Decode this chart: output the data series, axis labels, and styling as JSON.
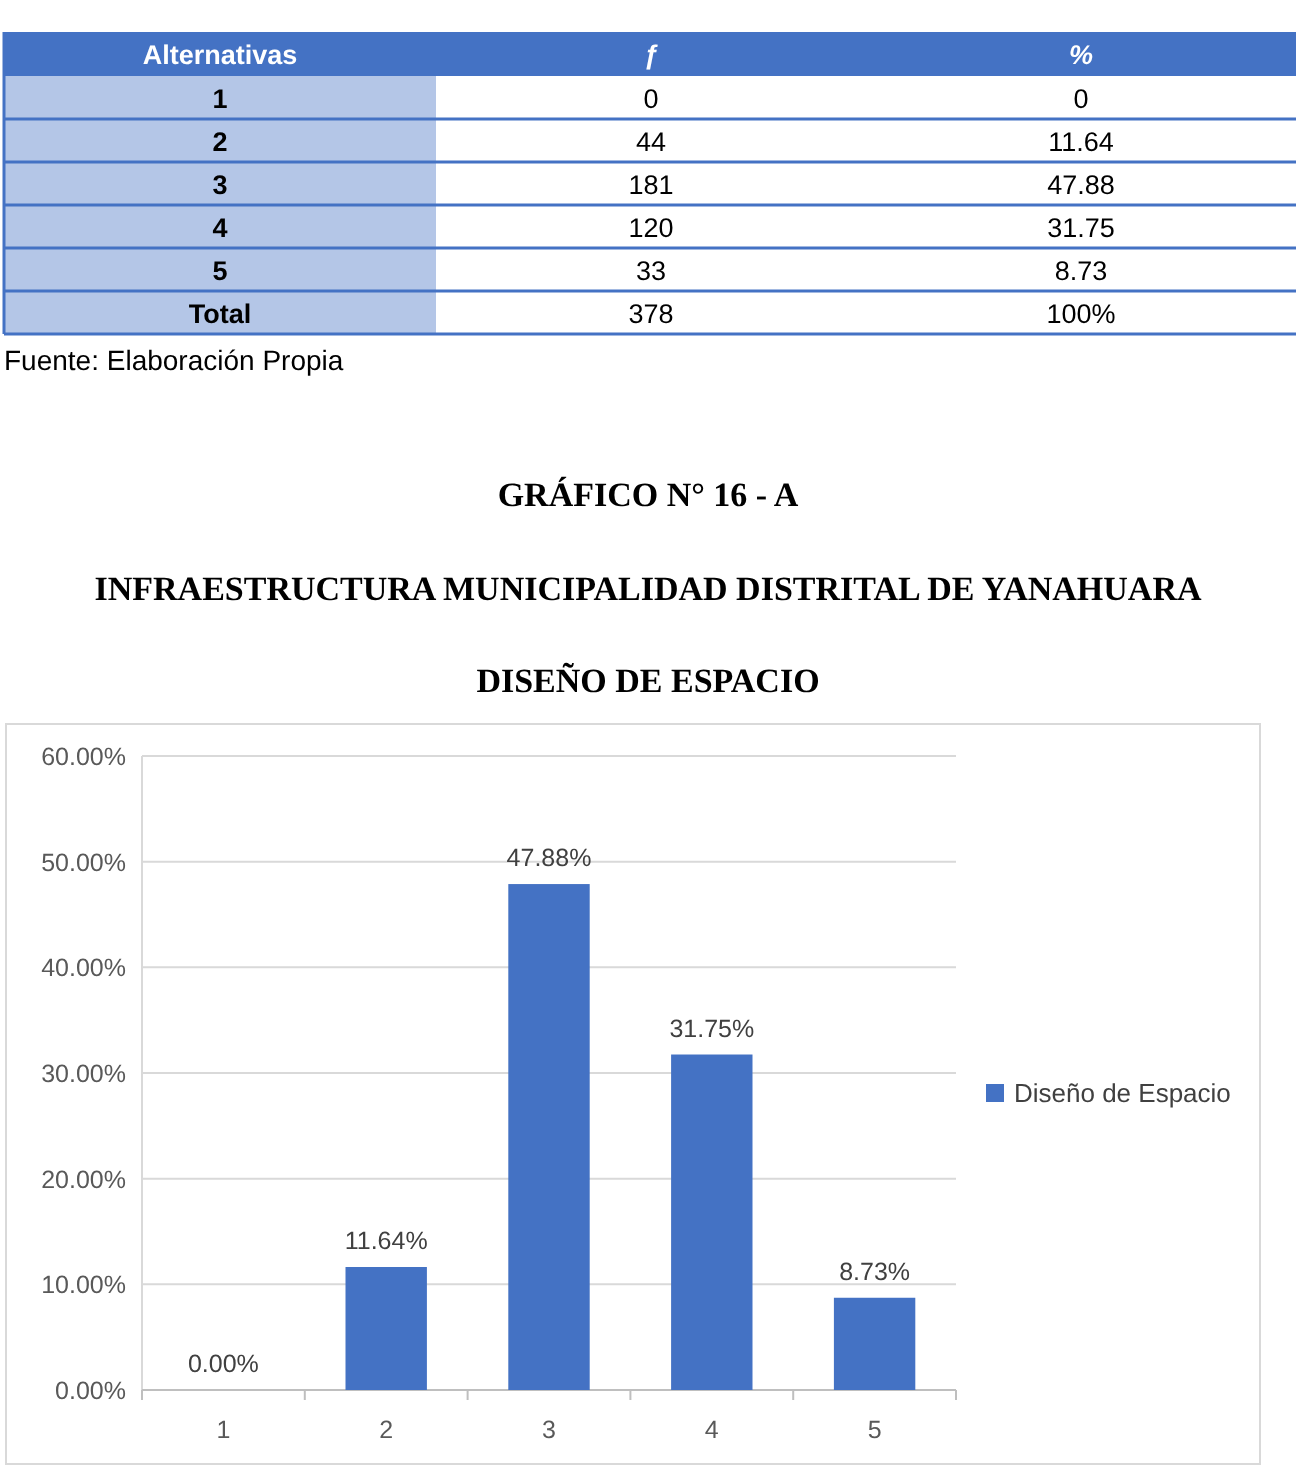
{
  "chart_data": [
    {
      "type": "heatmap",
      "ylabel": "Alternativas",
      "categories": [
        "ƒ",
        "%"
      ],
      "y_categories": [
        "1",
        "2",
        "3",
        "4",
        "5",
        "Total"
      ],
      "cells": [
        [
          0,
          0
        ],
        [
          44,
          11.64
        ],
        [
          181,
          47.88
        ],
        [
          120,
          31.75
        ],
        [
          33,
          8.73
        ],
        [
          378,
          100
        ]
      ],
      "cell_labels": [
        [
          "0",
          "0"
        ],
        [
          "44",
          "11.64"
        ],
        [
          "181",
          "47.88"
        ],
        [
          "120",
          "31.75"
        ],
        [
          "33",
          "8.73"
        ],
        [
          "378",
          "100%"
        ]
      ],
      "annotations": [
        "Fuente: Elaboración Propia"
      ]
    },
    {
      "type": "bar",
      "title": "GRÁFICO N° 16 - A",
      "subtitle": "INFRAESTRUCTURA MUNICIPALIDAD DISTRITAL DE YANAHUARA\nDISEÑO DE ESPACIO",
      "categories": [
        "1",
        "2",
        "3",
        "4",
        "5"
      ],
      "series": [
        {
          "name": "Diseño de Espacio",
          "color": "#4472c4",
          "values": [
            0,
            11.64,
            47.88,
            31.75,
            8.73
          ],
          "value_labels": [
            "0.00%",
            "11.64%",
            "47.88%",
            "31.75%",
            "8.73%"
          ]
        }
      ],
      "ylim": [
        0,
        60
      ],
      "yticks": [
        {
          "value": 0,
          "label": "0.00%"
        },
        {
          "value": 10,
          "label": "10.00%"
        },
        {
          "value": 20,
          "label": "20.00%"
        },
        {
          "value": 30,
          "label": "30.00%"
        },
        {
          "value": 40,
          "label": "40.00%"
        },
        {
          "value": 50,
          "label": "50.00%"
        },
        {
          "value": 60,
          "label": "60.00%"
        }
      ],
      "grid": "y",
      "legend": "right"
    }
  ]
}
